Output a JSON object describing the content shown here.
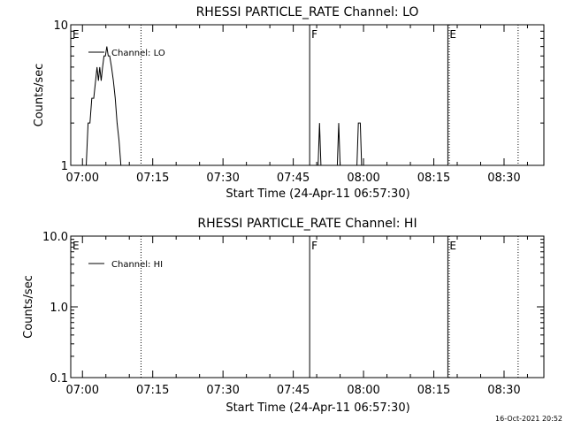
{
  "footer": {
    "timestamp": "16-Oct-2021 20:52"
  },
  "chart_data": [
    {
      "type": "line",
      "title": "RHESSI PARTICLE_RATE Channel: LO",
      "xlabel": "Start Time (24-Apr-11 06:57:30)",
      "ylabel": "Counts/sec",
      "y_scale": "log",
      "ylim": [
        1,
        10
      ],
      "y_ticks": [
        {
          "value": 1,
          "label": "1"
        },
        {
          "value": 10,
          "label": "10"
        }
      ],
      "x_range_minutes": [
        -2.5,
        98.5
      ],
      "x_ticks": [
        {
          "value": 0,
          "label": "07:00"
        },
        {
          "value": 15,
          "label": "07:15"
        },
        {
          "value": 30,
          "label": "07:30"
        },
        {
          "value": 45,
          "label": "07:45"
        },
        {
          "value": 60,
          "label": "08:00"
        },
        {
          "value": 75,
          "label": "08:15"
        },
        {
          "value": 90,
          "label": "08:30"
        }
      ],
      "legend": {
        "position": "top-left",
        "label": "Channel: LO"
      },
      "markers": [
        {
          "label": "E",
          "minute": -2.5,
          "style": "dotted"
        },
        {
          "label": "",
          "minute": 12.5,
          "style": "dotted"
        },
        {
          "label": "F",
          "minute": 48.5,
          "style": "solid"
        },
        {
          "label": "E",
          "minute": 78.0,
          "style": "solid"
        },
        {
          "label": "",
          "minute": 78.3,
          "style": "dotted"
        },
        {
          "label": "",
          "minute": 93.0,
          "style": "dotted"
        }
      ],
      "series": [
        {
          "name": "Channel: LO",
          "points": [
            [
              0.8,
              1
            ],
            [
              1.2,
              2
            ],
            [
              1.6,
              2
            ],
            [
              2.0,
              3
            ],
            [
              2.4,
              3
            ],
            [
              2.8,
              4
            ],
            [
              3.1,
              5
            ],
            [
              3.4,
              4
            ],
            [
              3.7,
              5
            ],
            [
              4.0,
              4
            ],
            [
              4.3,
              5
            ],
            [
              4.6,
              6
            ],
            [
              4.9,
              6
            ],
            [
              5.2,
              7
            ],
            [
              5.5,
              6
            ],
            [
              5.8,
              6
            ],
            [
              6.2,
              5
            ],
            [
              6.6,
              4
            ],
            [
              7.0,
              3
            ],
            [
              7.4,
              2
            ],
            [
              7.8,
              1.5
            ],
            [
              8.2,
              1
            ]
          ]
        },
        {
          "name": "",
          "points": [
            [
              50.3,
              1
            ],
            [
              50.6,
              2
            ],
            [
              50.9,
              1
            ]
          ]
        },
        {
          "name": "",
          "points": [
            [
              54.4,
              1
            ],
            [
              54.7,
              2
            ],
            [
              55.0,
              1
            ]
          ]
        },
        {
          "name": "",
          "points": [
            [
              58.6,
              1
            ],
            [
              58.9,
              2
            ],
            [
              59.3,
              2
            ],
            [
              59.6,
              1
            ]
          ]
        }
      ]
    },
    {
      "type": "line",
      "title": "RHESSI PARTICLE_RATE Channel: HI",
      "xlabel": "Start Time (24-Apr-11 06:57:30)",
      "ylabel": "Counts/sec",
      "y_scale": "log",
      "ylim": [
        0.1,
        10
      ],
      "y_ticks": [
        {
          "value": 0.1,
          "label": "0.1"
        },
        {
          "value": 1,
          "label": "1.0"
        },
        {
          "value": 10,
          "label": "10.0"
        }
      ],
      "x_range_minutes": [
        -2.5,
        98.5
      ],
      "x_ticks": [
        {
          "value": 0,
          "label": "07:00"
        },
        {
          "value": 15,
          "label": "07:15"
        },
        {
          "value": 30,
          "label": "07:30"
        },
        {
          "value": 45,
          "label": "07:45"
        },
        {
          "value": 60,
          "label": "08:00"
        },
        {
          "value": 75,
          "label": "08:15"
        },
        {
          "value": 90,
          "label": "08:30"
        }
      ],
      "legend": {
        "position": "top-left",
        "label": "Channel: HI"
      },
      "markers": [
        {
          "label": "E",
          "minute": -2.5,
          "style": "dotted"
        },
        {
          "label": "",
          "minute": 12.5,
          "style": "dotted"
        },
        {
          "label": "F",
          "minute": 48.5,
          "style": "solid"
        },
        {
          "label": "E",
          "minute": 78.0,
          "style": "solid"
        },
        {
          "label": "",
          "minute": 78.3,
          "style": "dotted"
        },
        {
          "label": "",
          "minute": 93.0,
          "style": "dotted"
        }
      ],
      "series": []
    }
  ]
}
